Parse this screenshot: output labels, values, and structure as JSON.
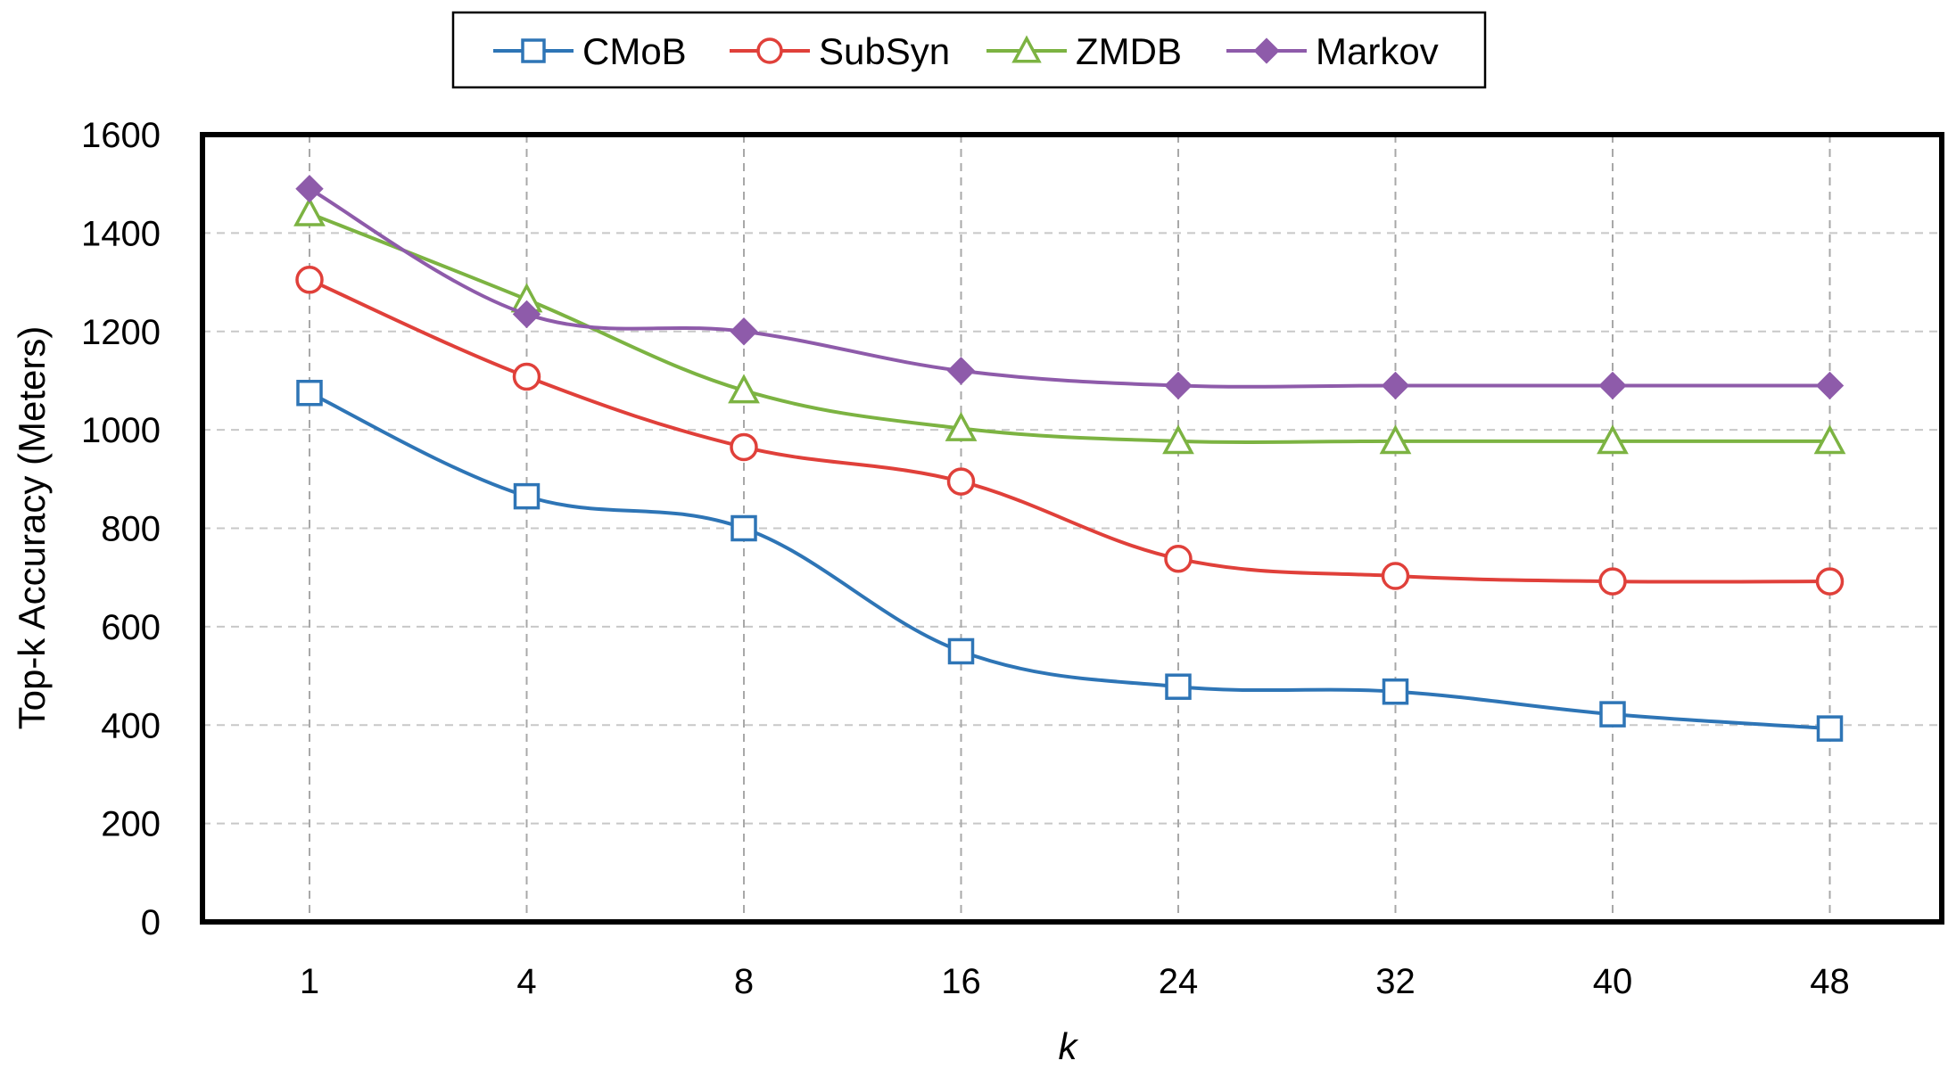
{
  "chart_data": {
    "type": "line",
    "title": "",
    "xlabel": "k",
    "ylabel": "Top-k Accuracy (Meters)",
    "categories": [
      "1",
      "4",
      "8",
      "16",
      "24",
      "32",
      "40",
      "48"
    ],
    "ylim": [
      0,
      1600
    ],
    "yticks": [
      0,
      200,
      400,
      600,
      800,
      1000,
      1200,
      1400,
      1600
    ],
    "grid": "dashed horizontal and vertical",
    "legend_position": "top-center",
    "series": [
      {
        "name": "CMoB",
        "color": "#2E75B6",
        "marker": "square",
        "values": [
          1075,
          865,
          800,
          550,
          478,
          468,
          422,
          393
        ]
      },
      {
        "name": "SubSyn",
        "color": "#E0403A",
        "marker": "circle",
        "values": [
          1305,
          1108,
          965,
          895,
          738,
          703,
          692,
          692
        ]
      },
      {
        "name": "ZMDB",
        "color": "#7CB342",
        "marker": "triangle",
        "values": [
          1440,
          1265,
          1080,
          1003,
          977,
          977,
          977,
          977
        ]
      },
      {
        "name": "Markov",
        "color": "#8E5BAA",
        "marker": "diamond",
        "values": [
          1490,
          1235,
          1200,
          1120,
          1090,
          1090,
          1090,
          1090
        ]
      }
    ]
  }
}
